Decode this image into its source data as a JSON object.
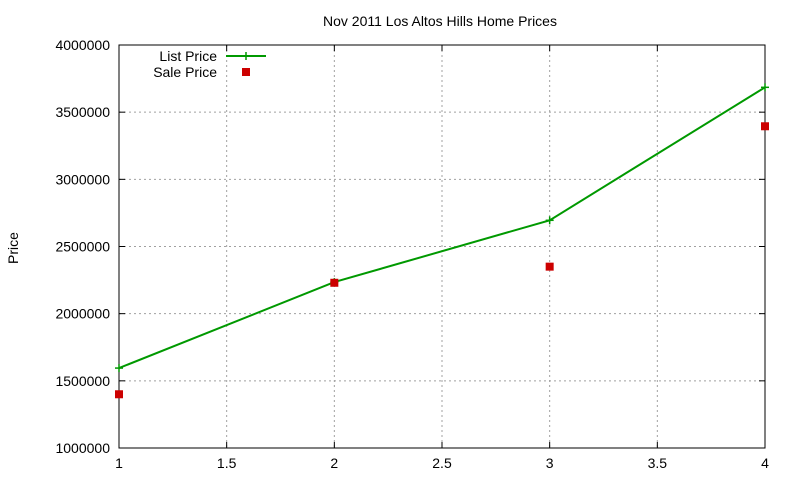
{
  "chart_data": {
    "type": "line",
    "title": "Nov 2011 Los Altos Hills Home Prices",
    "xlabel": "",
    "ylabel": "Price",
    "xlim": [
      1,
      4
    ],
    "ylim": [
      1000000,
      4000000
    ],
    "xticks": [
      1,
      1.5,
      2,
      2.5,
      3,
      3.5,
      4
    ],
    "yticks": [
      1000000,
      1500000,
      2000000,
      2500000,
      3000000,
      3500000,
      4000000
    ],
    "grid": true,
    "legend_position": "top-left",
    "series": [
      {
        "name": "List Price",
        "style": "line+points",
        "marker": "plus",
        "color": "#009900",
        "points": [
          [
            1,
            1595000
          ],
          [
            2,
            2235000
          ],
          [
            3,
            2695000
          ],
          [
            4,
            3685000
          ]
        ]
      },
      {
        "name": "Sale Price",
        "style": "points",
        "marker": "square",
        "color": "#cc0000",
        "points": [
          [
            1,
            1400000
          ],
          [
            2,
            2230000
          ],
          [
            3,
            2350000
          ],
          [
            4,
            3395000
          ]
        ]
      }
    ]
  }
}
